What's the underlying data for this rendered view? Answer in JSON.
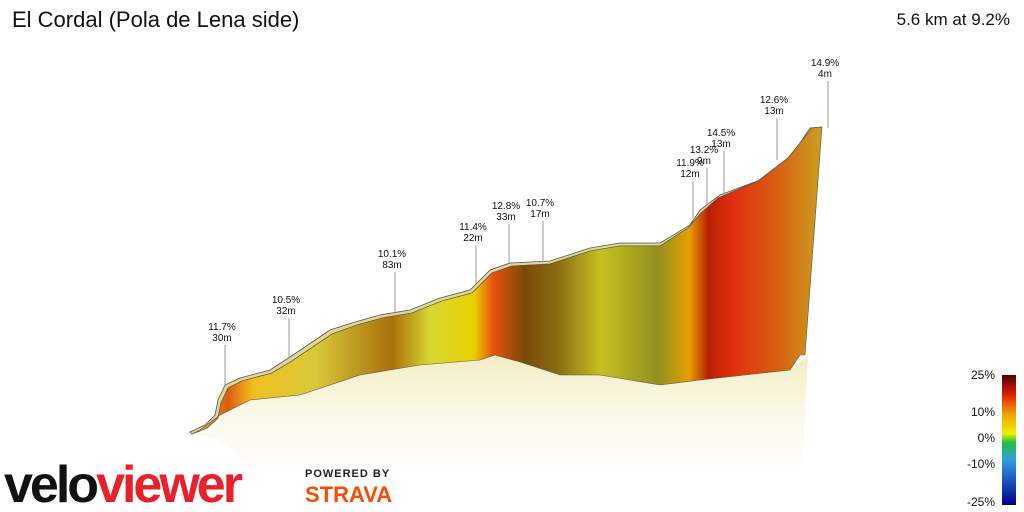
{
  "header": {
    "title": "El Cordal (Pola de Lena side)",
    "summary": "5.6 km at 9.2%"
  },
  "annotations": [
    {
      "gradient": "11.7%",
      "length": "30m"
    },
    {
      "gradient": "10.5%",
      "length": "32m"
    },
    {
      "gradient": "10.1%",
      "length": "83m"
    },
    {
      "gradient": "11.4%",
      "length": "22m"
    },
    {
      "gradient": "12.8%",
      "length": "33m"
    },
    {
      "gradient": "10.7%",
      "length": "17m"
    },
    {
      "gradient": "11.9%",
      "length": "12m"
    },
    {
      "gradient": "13.2%",
      "length": "9m"
    },
    {
      "gradient": "14.5%",
      "length": "13m"
    },
    {
      "gradient": "12.6%",
      "length": "13m"
    },
    {
      "gradient": "14.9%",
      "length": "4m"
    }
  ],
  "legend": {
    "labels": [
      "25%",
      "10%",
      "0%",
      "-10%",
      "-25%"
    ]
  },
  "branding": {
    "logo_start": "velo",
    "logo_end": "viewer",
    "powered_by": "POWERED BY",
    "partner": "STRAVA"
  }
}
